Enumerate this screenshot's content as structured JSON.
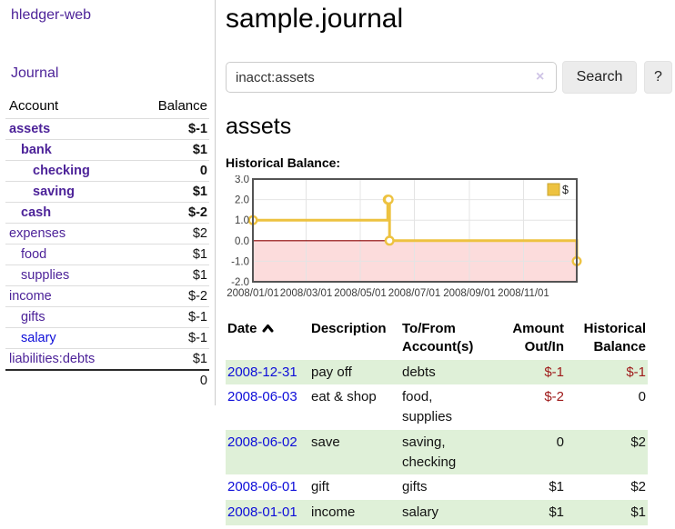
{
  "sidebar": {
    "app_title": "hledger-web",
    "journal_link": "Journal",
    "accounts_table": {
      "col_account": "Account",
      "col_balance": "Balance",
      "rows": [
        {
          "name": "assets",
          "indent": 0,
          "bold": true,
          "balance": "$-1",
          "balance_style": "neg-strong",
          "link": "purple"
        },
        {
          "name": "bank",
          "indent": 1,
          "bold": true,
          "balance": "$1",
          "balance_style": "pos",
          "link": "purple"
        },
        {
          "name": "checking",
          "indent": 2,
          "bold": true,
          "balance": "0",
          "balance_style": "pos",
          "link": "purple"
        },
        {
          "name": "saving",
          "indent": 2,
          "bold": true,
          "balance": "$1",
          "balance_style": "pos",
          "link": "purple"
        },
        {
          "name": "cash",
          "indent": 1,
          "bold": true,
          "balance": "$-2",
          "balance_style": "neg-strong",
          "link": "purple"
        },
        {
          "name": "expenses",
          "indent": 0,
          "bold": false,
          "balance": "$2",
          "balance_style": "pos",
          "link": "purple"
        },
        {
          "name": "food",
          "indent": 1,
          "bold": false,
          "balance": "$1",
          "balance_style": "pos",
          "link": "purple"
        },
        {
          "name": "supplies",
          "indent": 1,
          "bold": false,
          "balance": "$1",
          "balance_style": "pos",
          "link": "purple"
        },
        {
          "name": "income",
          "indent": 0,
          "bold": false,
          "balance": "$-2",
          "balance_style": "neg-soft",
          "link": "purple"
        },
        {
          "name": "gifts",
          "indent": 1,
          "bold": false,
          "balance": "$-1",
          "balance_style": "neg-soft",
          "link": "purple"
        },
        {
          "name": "salary",
          "indent": 1,
          "bold": false,
          "balance": "$-1",
          "balance_style": "neg-soft",
          "link": "blue"
        },
        {
          "name": "liabilities:debts",
          "indent": 0,
          "bold": false,
          "balance": "$1",
          "balance_style": "pos",
          "link": "purple"
        }
      ],
      "total": "0"
    }
  },
  "main": {
    "title": "sample.journal",
    "search": {
      "value": "inacct:assets",
      "clear_label": "×",
      "search_button": "Search",
      "help_button": "?"
    },
    "account_heading": "assets",
    "chart_title": "Historical Balance:"
  },
  "register": {
    "headers": [
      "Date",
      "Description",
      "To/From Account(s)",
      "Amount Out/In",
      "Historical Balance"
    ],
    "sort_column": "Date",
    "sort_direction": "ascending",
    "rows": [
      {
        "date": "2008-12-31",
        "description": "pay off",
        "accounts": "debts",
        "amount": "$-1",
        "amount_negative": true,
        "balance": "$-1",
        "balance_negative": true,
        "shaded": true
      },
      {
        "date": "2008-06-03",
        "description": "eat & shop",
        "accounts": "food, supplies",
        "amount": "$-2",
        "amount_negative": true,
        "balance": "0",
        "balance_negative": false,
        "shaded": false
      },
      {
        "date": "2008-06-02",
        "description": "save",
        "accounts": "saving, checking",
        "amount": "0",
        "amount_negative": false,
        "balance": "$2",
        "balance_negative": false,
        "shaded": true
      },
      {
        "date": "2008-06-01",
        "description": "gift",
        "accounts": "gifts",
        "amount": "$1",
        "amount_negative": false,
        "balance": "$2",
        "balance_negative": false,
        "shaded": false
      },
      {
        "date": "2008-01-01",
        "description": "income",
        "accounts": "salary",
        "amount": "$1",
        "amount_negative": false,
        "balance": "$1",
        "balance_negative": false,
        "shaded": true
      }
    ]
  },
  "chart_data": {
    "type": "line",
    "step": true,
    "title": "Historical Balance:",
    "series": [
      {
        "name": "$",
        "color": "#edc240",
        "points": [
          [
            "2008-01-01",
            1
          ],
          [
            "2008-06-01",
            2
          ],
          [
            "2008-06-02",
            2
          ],
          [
            "2008-06-03",
            0
          ],
          [
            "2008-12-31",
            -1
          ]
        ]
      }
    ],
    "x_range": [
      "2008-01-01",
      "2008-12-31"
    ],
    "x_ticks": [
      "2008/01/01",
      "2008/03/01",
      "2008/05/01",
      "2008/07/01",
      "2008/09/01",
      "2008/11/01"
    ],
    "y_ticks": [
      3.0,
      2.0,
      1.0,
      0.0,
      -1.0,
      -2.0
    ],
    "ylim": [
      -2,
      3
    ],
    "grid": true,
    "legend": {
      "label": "$",
      "position": "top-right"
    },
    "colors": {
      "series": "#edc240",
      "marker_fill": "#ffffff",
      "negative_region": "#fcdcdc",
      "zero_line": "#8b0000",
      "gridline": "#e4e4e4",
      "border": "#545454",
      "tick_text": "#3c3c3c"
    }
  }
}
